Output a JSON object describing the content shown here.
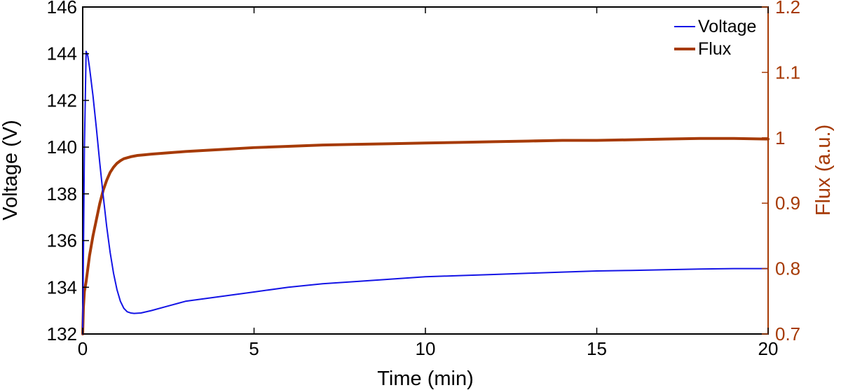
{
  "chart_data": {
    "type": "line",
    "xlabel": "Time (min)",
    "ylabel_left": "Voltage (V)",
    "ylabel_right": "Flux (a.u.)",
    "xlim": [
      0,
      20
    ],
    "ylim_left": [
      132,
      146
    ],
    "ylim_right": [
      0.7,
      1.2
    ],
    "x_ticks": [
      "0",
      "5",
      "10",
      "15",
      "20"
    ],
    "y_left_ticks": [
      "132",
      "134",
      "136",
      "138",
      "140",
      "142",
      "144",
      "146"
    ],
    "y_right_ticks": [
      "0.7",
      "0.8",
      "0.9",
      "1",
      "1.1",
      "1.2"
    ],
    "grid": false,
    "legend": {
      "placement": "top-right"
    },
    "colors": {
      "voltage": "#1414e6",
      "flux": "#a63a05",
      "right_axis": "#a63a05"
    },
    "series": [
      {
        "name": "Voltage",
        "axis": "left",
        "x": [
          0.0,
          0.05,
          0.1,
          0.15,
          0.2,
          0.3,
          0.4,
          0.5,
          0.6,
          0.7,
          0.8,
          0.9,
          1.0,
          1.1,
          1.2,
          1.3,
          1.4,
          1.5,
          1.7,
          2.0,
          2.5,
          3,
          4,
          5,
          6,
          7,
          8,
          9,
          10,
          11,
          12,
          13,
          14,
          15,
          16,
          17,
          18,
          19,
          20
        ],
        "y": [
          132.0,
          140.0,
          144.1,
          143.9,
          143.4,
          142.2,
          140.8,
          139.3,
          137.9,
          136.6,
          135.5,
          134.6,
          133.9,
          133.4,
          133.1,
          132.95,
          132.9,
          132.88,
          132.9,
          133.0,
          133.2,
          133.4,
          133.6,
          133.8,
          134.0,
          134.15,
          134.25,
          134.35,
          134.45,
          134.5,
          134.55,
          134.6,
          134.65,
          134.7,
          134.72,
          134.75,
          134.78,
          134.8,
          134.8
        ]
      },
      {
        "name": "Flux",
        "axis": "right",
        "x": [
          0.0,
          0.02,
          0.05,
          0.1,
          0.15,
          0.2,
          0.3,
          0.4,
          0.5,
          0.6,
          0.7,
          0.8,
          0.9,
          1.0,
          1.1,
          1.2,
          1.4,
          1.6,
          1.8,
          2.0,
          2.5,
          3,
          4,
          5,
          6,
          7,
          8,
          9,
          10,
          11,
          12,
          13,
          14,
          15,
          16,
          17,
          18,
          19,
          20
        ],
        "y": [
          0.7,
          0.74,
          0.765,
          0.78,
          0.8,
          0.82,
          0.85,
          0.875,
          0.9,
          0.92,
          0.935,
          0.947,
          0.955,
          0.961,
          0.965,
          0.968,
          0.971,
          0.973,
          0.974,
          0.975,
          0.977,
          0.979,
          0.982,
          0.985,
          0.987,
          0.989,
          0.99,
          0.991,
          0.992,
          0.993,
          0.994,
          0.995,
          0.996,
          0.996,
          0.997,
          0.998,
          0.999,
          0.999,
          0.998
        ]
      }
    ]
  }
}
